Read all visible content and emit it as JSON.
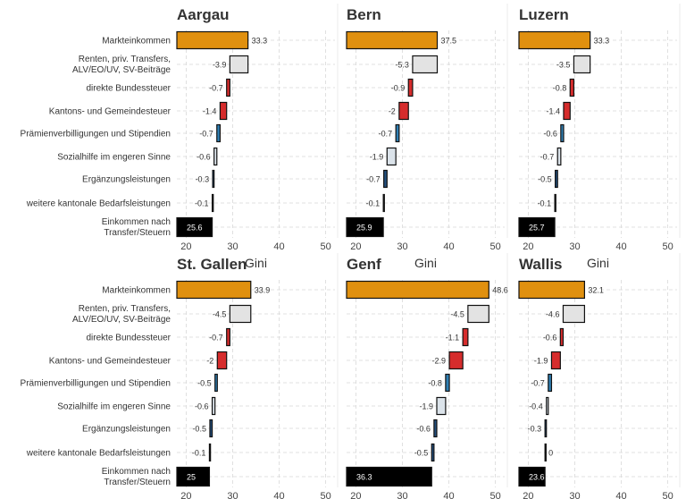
{
  "chart_data": {
    "type": "waterfall",
    "xlabel": "Gini",
    "xlim": [
      18,
      52
    ],
    "xticks": [
      20,
      30,
      40,
      50
    ],
    "categories": [
      "Markteinkommen",
      "Renten, priv. Transfers,\nALV/EO/UV, SV-Beiträge",
      "direkte Bundessteuer",
      "Kantons- und Gemeindesteuer",
      "Prämienverbilligungen und Stipendien",
      "Sozialhilfe im engeren Sinne",
      "Ergänzungsleistungen",
      "weitere kantonale Bedarfsleistungen",
      "Einkommen nach\nTransfer/Steuern"
    ],
    "colors": {
      "market": "#e0900f",
      "transfers": "#e3e3e3",
      "tax": "#d62c2c",
      "benefit": "#2f7fb3",
      "social": "#dbe3ea",
      "el": "#234f7d",
      "final": "#000000"
    },
    "panels": [
      {
        "title": "Aargau",
        "values": [
          33.3,
          -3.9,
          -0.7,
          -1.4,
          -0.7,
          -0.6,
          -0.3,
          -0.1,
          25.6
        ],
        "labels": [
          "33.3",
          "-3.9",
          "-0.7",
          "-1.4",
          "-0.7",
          "-0.6",
          "-0.3",
          "-0.1",
          "25.6"
        ]
      },
      {
        "title": "Bern",
        "values": [
          37.5,
          -5.3,
          -0.9,
          -2.0,
          -0.7,
          -1.9,
          -0.7,
          -0.1,
          25.9
        ],
        "labels": [
          "37.5",
          "-5.3",
          "-0.9",
          "-2",
          "-0.7",
          "-1.9",
          "-0.7",
          "-0.1",
          "25.9"
        ]
      },
      {
        "title": "Luzern",
        "values": [
          33.3,
          -3.5,
          -0.8,
          -1.4,
          -0.6,
          -0.7,
          -0.5,
          -0.1,
          25.7
        ],
        "labels": [
          "33.3",
          "-3.5",
          "-0.8",
          "-1.4",
          "-0.6",
          "-0.7",
          "-0.5",
          "-0.1",
          "25.7"
        ]
      },
      {
        "title": "St. Gallen",
        "values": [
          33.9,
          -4.5,
          -0.7,
          -2.0,
          -0.5,
          -0.6,
          -0.5,
          -0.1,
          25.0
        ],
        "labels": [
          "33.9",
          "-4.5",
          "-0.7",
          "-2",
          "-0.5",
          "-0.6",
          "-0.5",
          "-0.1",
          "25"
        ]
      },
      {
        "title": "Genf",
        "values": [
          48.6,
          -4.5,
          -1.1,
          -2.9,
          -0.8,
          -1.9,
          -0.6,
          -0.5,
          36.3
        ],
        "labels": [
          "48.6",
          "-4.5",
          "-1.1",
          "-2.9",
          "-0.8",
          "-1.9",
          "-0.6",
          "-0.5",
          "36.3"
        ]
      },
      {
        "title": "Wallis",
        "values": [
          32.1,
          -4.6,
          -0.6,
          -1.9,
          -0.7,
          -0.4,
          -0.3,
          0.0,
          23.6
        ],
        "labels": [
          "32.1",
          "-4.6",
          "-0.6",
          "-1.9",
          "-0.7",
          "-0.4",
          "-0.3",
          "0",
          "23.6"
        ]
      }
    ]
  }
}
